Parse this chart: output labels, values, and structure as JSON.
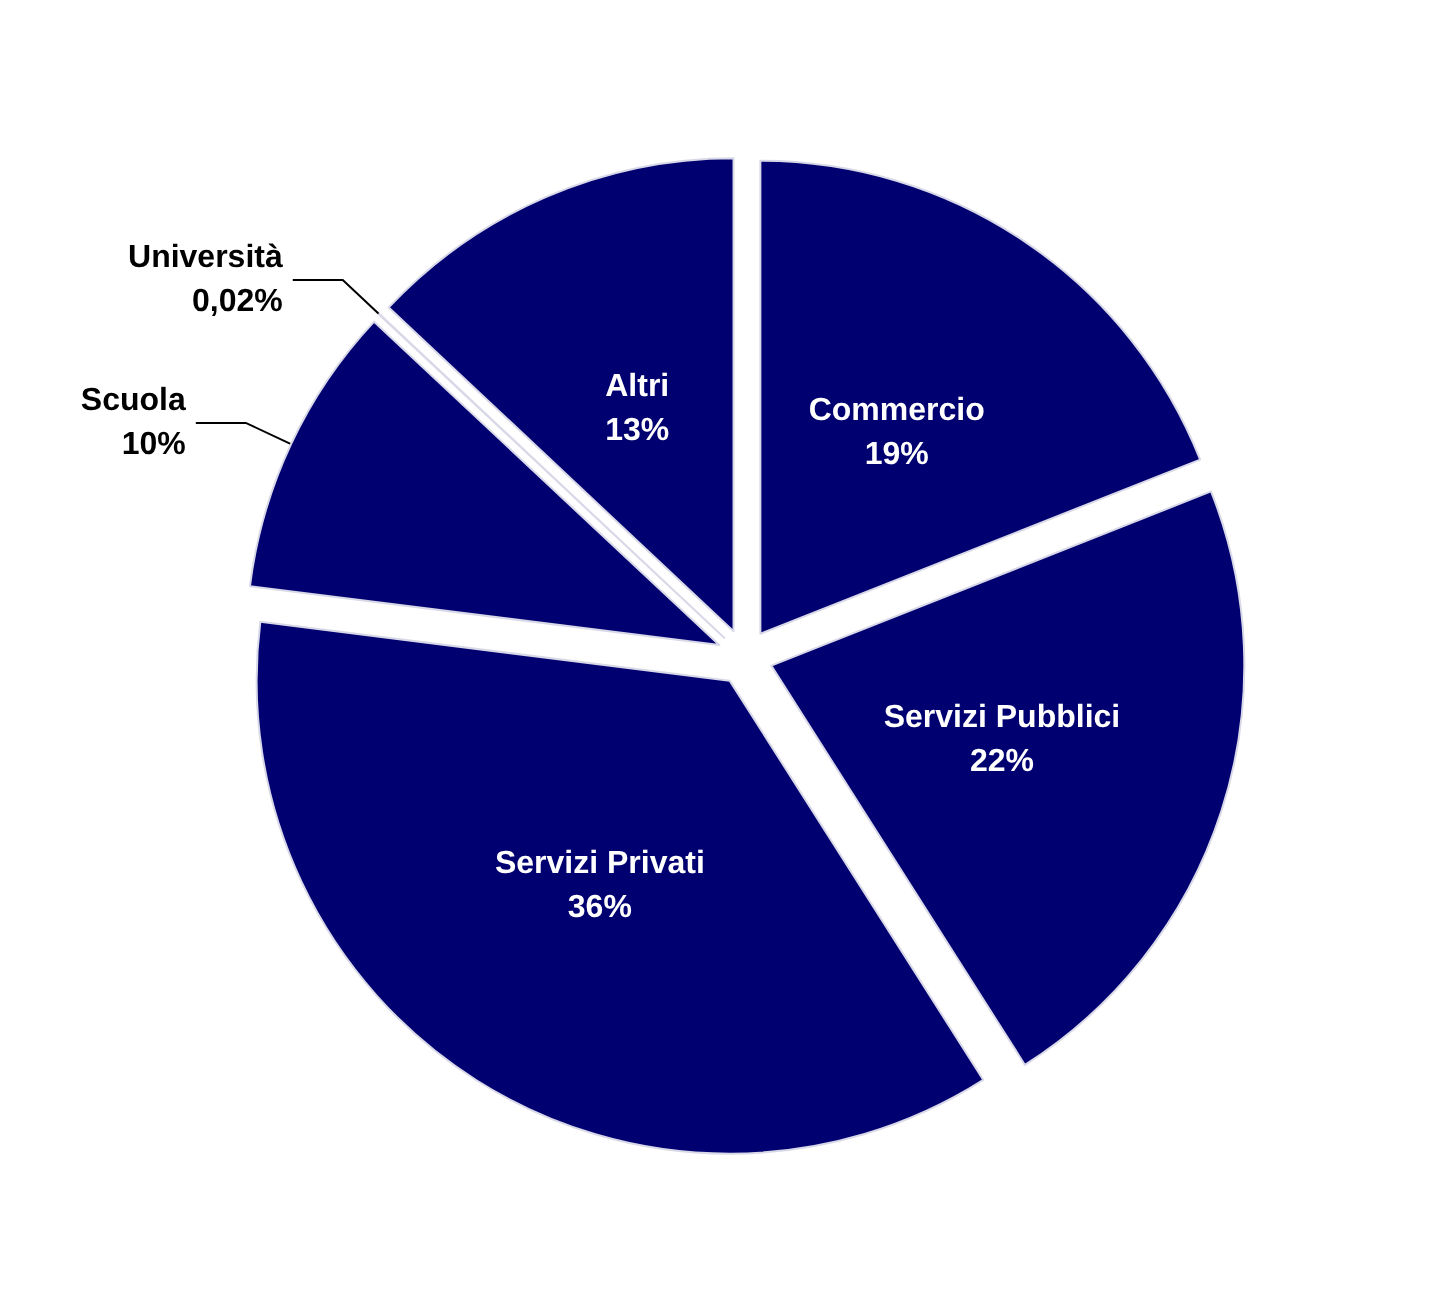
{
  "chart_data": {
    "type": "pie",
    "categories": [
      "Commercio",
      "Servizi Pubblici",
      "Servizi Privati",
      "Scuola",
      "Università",
      "Altri"
    ],
    "values": [
      19,
      22,
      36,
      10,
      0.02,
      13
    ],
    "value_labels": [
      "19%",
      "22%",
      "36%",
      "10%",
      "0,02%",
      "13%"
    ],
    "colors": [
      "#000070",
      "#000070",
      "#000070",
      "#000070",
      "#000070",
      "#000070"
    ],
    "legend": false
  }
}
